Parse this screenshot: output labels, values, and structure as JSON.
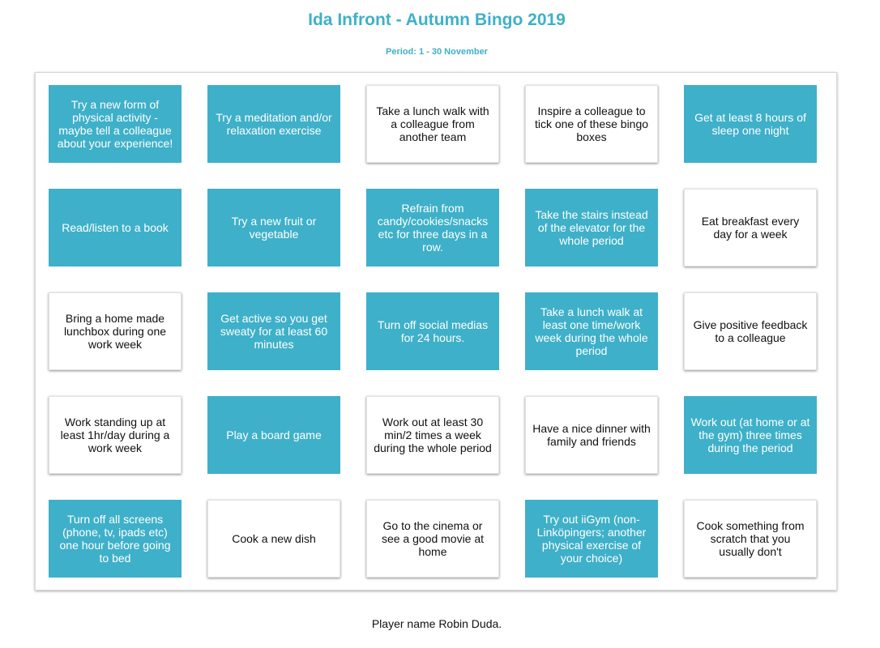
{
  "header": {
    "title": "Ida Infront - Autumn Bingo 2019",
    "period": "Period: 1 - 30 November"
  },
  "colors": {
    "accent": "#3fb0c9",
    "card_white": "#ffffff",
    "text_dark": "#111111"
  },
  "board": {
    "cells": [
      {
        "text": "Try a new form of physical activity - maybe tell a colleague about your experience!",
        "checked": true
      },
      {
        "text": "Try a meditation and/or relaxation exercise",
        "checked": true
      },
      {
        "text": "Take a lunch walk with a colleague from another team",
        "checked": false
      },
      {
        "text": "Inspire a colleague to tick one of these bingo boxes",
        "checked": false
      },
      {
        "text": "Get at least 8 hours of sleep one night",
        "checked": true
      },
      {
        "text": "Read/listen to a book",
        "checked": true
      },
      {
        "text": "Try a new fruit or vegetable",
        "checked": true
      },
      {
        "text": "Refrain from candy/cookies/snacks etc for three days in a row.",
        "checked": true
      },
      {
        "text": "Take the stairs instead of the elevator for the whole period",
        "checked": true
      },
      {
        "text": "Eat breakfast every day for a week",
        "checked": false
      },
      {
        "text": "Bring a home made lunchbox during one work week",
        "checked": false
      },
      {
        "text": "Get active so you get sweaty for at least 60 minutes",
        "checked": true
      },
      {
        "text": "Turn off social medias for 24 hours.",
        "checked": true
      },
      {
        "text": "Take a lunch walk at least one time/work week during the whole period",
        "checked": true
      },
      {
        "text": "Give positive feedback to a colleague",
        "checked": false
      },
      {
        "text": "Work standing up at least 1hr/day during a work week",
        "checked": false
      },
      {
        "text": "Play a board game",
        "checked": true
      },
      {
        "text": "Work out at least 30 min/2 times a week during the whole period",
        "checked": false
      },
      {
        "text": "Have a nice dinner with family and friends",
        "checked": false
      },
      {
        "text": "Work out (at home or at the gym) three times during the period",
        "checked": true
      },
      {
        "text": "Turn off all screens (phone, tv, ipads etc) one hour before going to bed",
        "checked": true
      },
      {
        "text": "Cook a new dish",
        "checked": false
      },
      {
        "text": "Go to the cinema or see a good movie at home",
        "checked": false
      },
      {
        "text": "Try out iiGym (non-Linköpingers; another physical exercise of your choice)",
        "checked": true
      },
      {
        "text": "Cook something from scratch that you usually don't",
        "checked": false
      }
    ]
  },
  "footer": {
    "player": "Player name Robin Duda."
  }
}
